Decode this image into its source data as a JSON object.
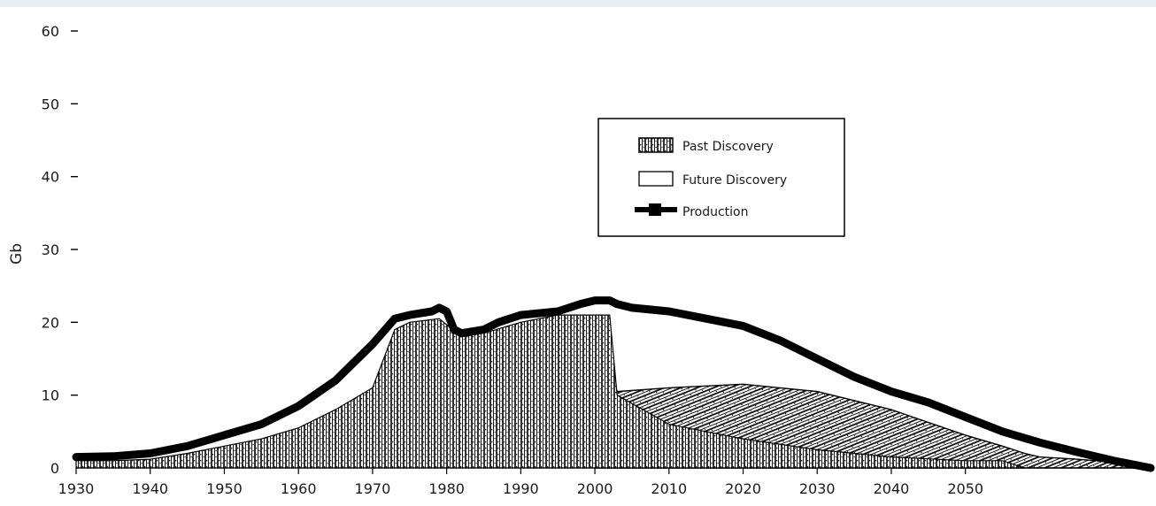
{
  "chart_data": {
    "type": "area",
    "title": "",
    "xlabel": "",
    "ylabel": "Gb",
    "xlim": [
      1930,
      2075
    ],
    "ylim": [
      0,
      60
    ],
    "x_ticks": [
      1930,
      1940,
      1950,
      1960,
      1970,
      1980,
      1990,
      2000,
      2010,
      2020,
      2030,
      2040,
      2050
    ],
    "y_ticks": [
      0,
      10,
      20,
      30,
      40,
      50,
      60
    ],
    "grid": false,
    "legend": {
      "position": "top-right",
      "entries": [
        {
          "label": "Past Discovery",
          "style": "stippled"
        },
        {
          "label": "Future Discovery",
          "style": "open"
        },
        {
          "label": "Production",
          "style": "thick-line"
        }
      ]
    },
    "series": [
      {
        "name": "Past Discovery",
        "x": [
          1930,
          1935,
          1940,
          1945,
          1950,
          1955,
          1960,
          1965,
          1970,
          1973,
          1975,
          1979,
          1982,
          1985,
          1990,
          1995,
          2000,
          2002,
          2003,
          2010,
          2020,
          2030,
          2040,
          2050,
          2055,
          2058
        ],
        "values": [
          1,
          1,
          1.2,
          2,
          3,
          4,
          5.5,
          8,
          11,
          19,
          20,
          20.5,
          18,
          18.5,
          20,
          21,
          21,
          21,
          10,
          6,
          4,
          2.5,
          1.5,
          1,
          1,
          0
        ]
      },
      {
        "name": "Future Discovery",
        "x": [
          2000,
          2003,
          2010,
          2020,
          2030,
          2040,
          2050,
          2055,
          2058,
          2060,
          2065,
          2070,
          2075
        ],
        "values": [
          21,
          10.5,
          11,
          11.5,
          10.5,
          8,
          4.5,
          3,
          2,
          1.5,
          1.2,
          0.8,
          0
        ]
      },
      {
        "name": "Production",
        "x": [
          1930,
          1935,
          1940,
          1945,
          1950,
          1955,
          1960,
          1965,
          1970,
          1973,
          1975,
          1978,
          1979,
          1980,
          1981,
          1982,
          1985,
          1987,
          1990,
          1995,
          1998,
          2000,
          2002,
          2003,
          2005,
          2010,
          2015,
          2020,
          2025,
          2030,
          2035,
          2040,
          2045,
          2050,
          2055,
          2060,
          2065,
          2070,
          2075
        ],
        "values": [
          1.5,
          1.6,
          2,
          3,
          4.5,
          6,
          8.5,
          12,
          17,
          20.5,
          21,
          21.5,
          22,
          21.5,
          19,
          18.5,
          19,
          20,
          21,
          21.5,
          22.5,
          23,
          23,
          22.5,
          22,
          21.5,
          20.5,
          19.5,
          17.5,
          15,
          12.5,
          10.5,
          9,
          7,
          5,
          3.5,
          2.2,
          1,
          0
        ]
      }
    ]
  }
}
